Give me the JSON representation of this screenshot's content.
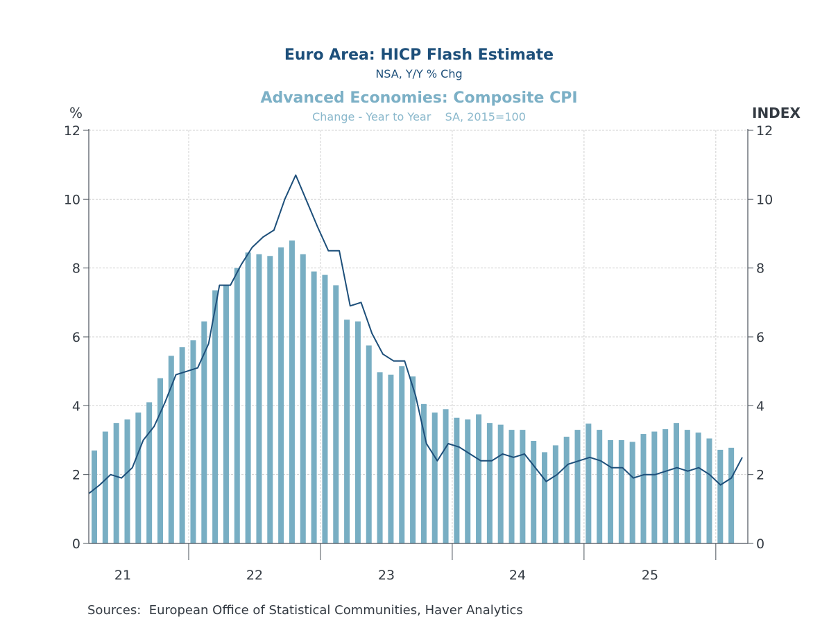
{
  "chart_data": {
    "type": "bar+line",
    "title": "Euro Area: HICP Flash Estimate",
    "subtitle": "NSA, Y/Y % Chg",
    "title2": "Advanced Economies: Composite CPI",
    "subtitle2": "Change - Year to Year    SA, 2015=100",
    "ylabel_left": "%",
    "ylabel_right": "INDEX",
    "ylim": [
      0,
      12
    ],
    "yticks": [
      "0",
      "2",
      "4",
      "6",
      "8",
      "10",
      "12"
    ],
    "xtick_labels": [
      "21",
      "22",
      "23",
      "24",
      "25"
    ],
    "grid": true,
    "colors": {
      "bars": "#78aec3",
      "line": "#1d4f7a",
      "axis": "#4a525a",
      "grid": "#d0d0d0"
    },
    "series": [
      {
        "name": "Advanced Economies: Composite CPI (Change - Year to Year, SA, 2015=100)",
        "kind": "bar",
        "axis": "right",
        "values": [
          2.7,
          3.25,
          3.5,
          3.6,
          3.8,
          4.1,
          4.8,
          5.45,
          5.7,
          5.9,
          6.45,
          7.35,
          7.5,
          8.0,
          8.45,
          8.4,
          8.35,
          8.6,
          8.8,
          8.4,
          7.9,
          7.8,
          7.5,
          6.5,
          6.45,
          5.75,
          4.97,
          4.9,
          5.15,
          4.85,
          4.05,
          3.8,
          3.9,
          3.65,
          3.6,
          3.75,
          3.5,
          3.45,
          3.3,
          3.3,
          2.98,
          2.65,
          2.85,
          3.1,
          3.3,
          3.48,
          3.3,
          3.0,
          3.0,
          2.95,
          3.18,
          3.25,
          3.32,
          3.5,
          3.3,
          3.22,
          3.05,
          2.72,
          2.78
        ]
      },
      {
        "name": "Euro Area: HICP Flash Estimate (NSA, Y/Y % Chg)",
        "kind": "line",
        "axis": "left",
        "values": [
          1.45,
          1.7,
          2.0,
          1.9,
          2.2,
          3.0,
          3.4,
          4.1,
          4.9,
          5.0,
          5.1,
          5.8,
          7.5,
          7.5,
          8.1,
          8.6,
          8.9,
          9.1,
          10.0,
          10.7,
          9.95,
          9.2,
          8.5,
          8.5,
          6.9,
          7.0,
          6.1,
          5.5,
          5.3,
          5.3,
          4.3,
          2.9,
          2.4,
          2.9,
          2.8,
          2.6,
          2.4,
          2.4,
          2.6,
          2.5,
          2.6,
          2.2,
          1.8,
          2.0,
          2.3,
          2.4,
          2.5,
          2.4,
          2.2,
          2.2,
          1.9,
          2.0,
          2.0,
          2.1,
          2.2,
          2.1,
          2.2,
          2.0,
          1.7,
          1.9,
          2.5
        ]
      }
    ],
    "sources": "Sources:  European Office of Statistical Communities, Haver Analytics"
  }
}
